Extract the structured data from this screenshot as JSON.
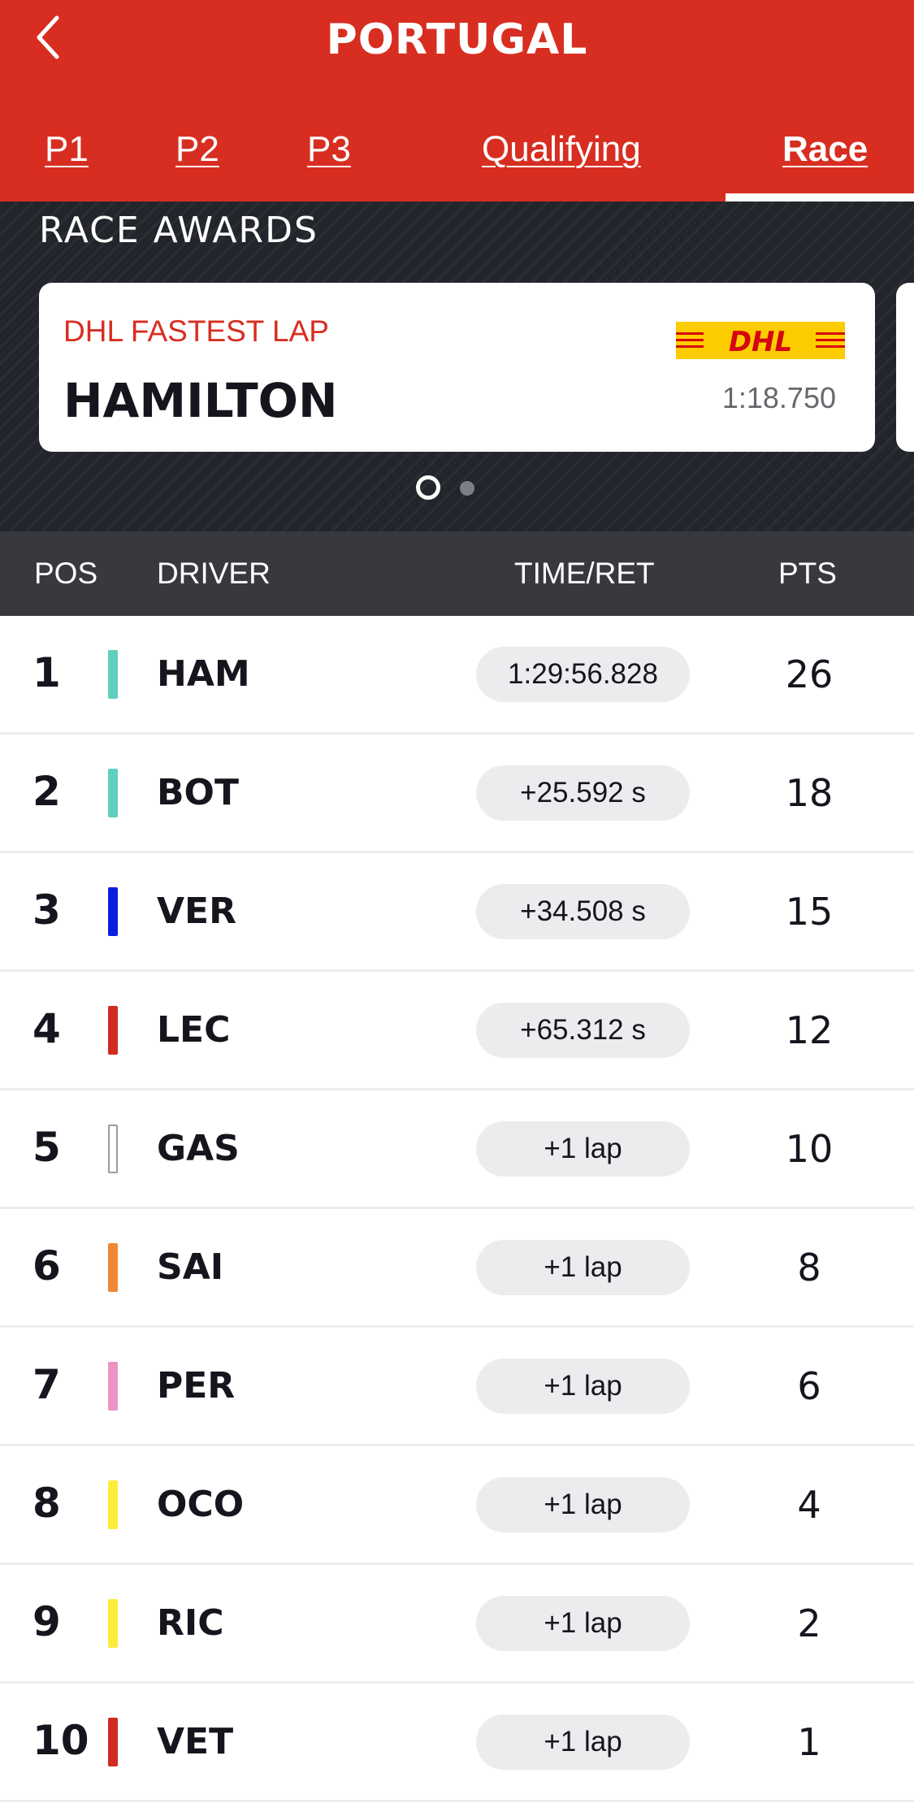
{
  "header": {
    "title": "PORTUGAL",
    "back_icon": "chevron-left-icon"
  },
  "tabs": [
    {
      "label": "P1",
      "active": false
    },
    {
      "label": "P2",
      "active": false
    },
    {
      "label": "P3",
      "active": false
    },
    {
      "label": "Qualifying",
      "active": false
    },
    {
      "label": "Race",
      "active": true
    }
  ],
  "awards": {
    "title": "RACE AWARDS",
    "card": {
      "label": "DHL FASTEST LAP",
      "driver": "HAMILTON",
      "time": "1:18.750",
      "logo_text": "DHL"
    },
    "pagination": {
      "current": 1,
      "total": 2
    }
  },
  "table": {
    "headers": {
      "pos": "POS",
      "driver": "DRIVER",
      "time": "TIME/RET",
      "pts": "PTS"
    },
    "rows": [
      {
        "pos": "1",
        "code": "HAM",
        "time": "1:29:56.828",
        "pts": "26",
        "team_color": "#5fcfbe"
      },
      {
        "pos": "2",
        "code": "BOT",
        "time": "+25.592 s",
        "pts": "18",
        "team_color": "#5fcfbe"
      },
      {
        "pos": "3",
        "code": "VER",
        "time": "+34.508 s",
        "pts": "15",
        "team_color": "#0a1ee0"
      },
      {
        "pos": "4",
        "code": "LEC",
        "time": "+65.312 s",
        "pts": "12",
        "team_color": "#d02a22"
      },
      {
        "pos": "5",
        "code": "GAS",
        "time": "+1 lap",
        "pts": "10",
        "team_color": "#ffffff"
      },
      {
        "pos": "6",
        "code": "SAI",
        "time": "+1 lap",
        "pts": "8",
        "team_color": "#f08734"
      },
      {
        "pos": "7",
        "code": "PER",
        "time": "+1 lap",
        "pts": "6",
        "team_color": "#ec94c4"
      },
      {
        "pos": "8",
        "code": "OCO",
        "time": "+1 lap",
        "pts": "4",
        "team_color": "#fcec3c"
      },
      {
        "pos": "9",
        "code": "RIC",
        "time": "+1 lap",
        "pts": "2",
        "team_color": "#fcec3c"
      },
      {
        "pos": "10",
        "code": "VET",
        "time": "+1 lap",
        "pts": "1",
        "team_color": "#d02a22"
      }
    ]
  },
  "colors": {
    "brand_red": "#d72e21",
    "dark": "#15151e",
    "table_header": "#38383f",
    "pill": "#ececee",
    "dhl_yellow": "#fccc00"
  }
}
